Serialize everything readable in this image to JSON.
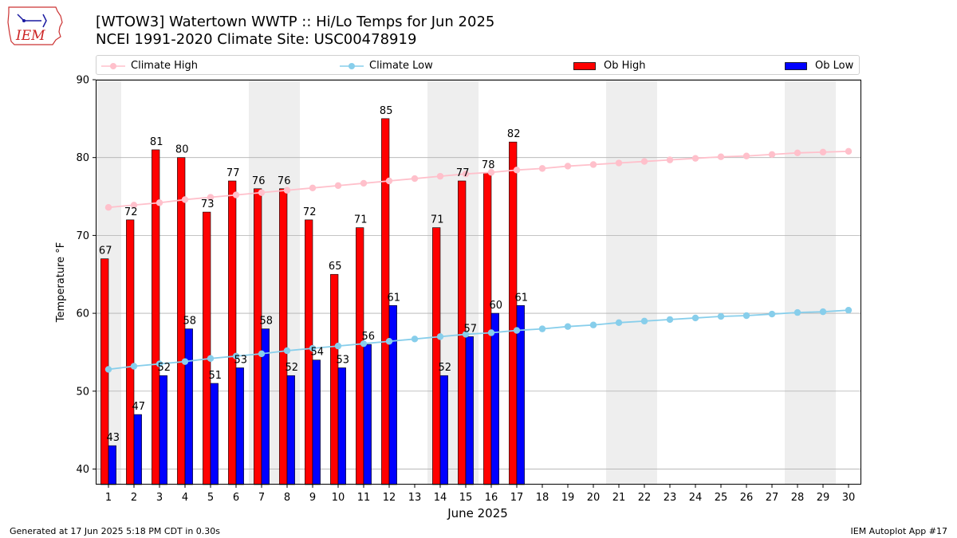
{
  "header": {
    "title_line1": "[WTOW3] Watertown WWTP :: Hi/Lo Temps for Jun 2025",
    "title_line2": "NCEI 1991-2020 Climate Site: USC00478919"
  },
  "logo": {
    "text": "IEM"
  },
  "footer": {
    "left": "Generated at 17 Jun 2025 5:18 PM CDT in 0.30s",
    "right": "IEM Autoplot App #17"
  },
  "colors": {
    "climate_high": "#ffc0cb",
    "climate_low": "#87ceeb",
    "ob_high": "#ff0000",
    "ob_low": "#0000ff",
    "weekend_shade": "#eeeeee",
    "grid": "#b0b0b0"
  },
  "chart_data": {
    "type": "bar",
    "xlabel": "June 2025",
    "ylabel": "Temperature °F",
    "ylim": [
      38,
      90
    ],
    "yticks": [
      40,
      50,
      60,
      70,
      80,
      90
    ],
    "grid": "horizontal",
    "legend": [
      "Climate High",
      "Climate Low",
      "Ob High",
      "Ob Low"
    ],
    "legend_placement": "top",
    "x": [
      1,
      2,
      3,
      4,
      5,
      6,
      7,
      8,
      9,
      10,
      11,
      12,
      13,
      14,
      15,
      16,
      17,
      18,
      19,
      20,
      21,
      22,
      23,
      24,
      25,
      26,
      27,
      28,
      29,
      30
    ],
    "shaded_days": [
      1,
      7,
      8,
      14,
      15,
      21,
      22,
      28,
      29
    ],
    "series": [
      {
        "name": "Ob High",
        "kind": "bar",
        "values": [
          67,
          72,
          81,
          80,
          73,
          77,
          76,
          76,
          72,
          65,
          71,
          85,
          null,
          71,
          77,
          78,
          82,
          null,
          null,
          null,
          null,
          null,
          null,
          null,
          null,
          null,
          null,
          null,
          null,
          null
        ]
      },
      {
        "name": "Ob Low",
        "kind": "bar",
        "values": [
          43,
          47,
          52,
          58,
          51,
          53,
          58,
          52,
          54,
          53,
          56,
          61,
          null,
          52,
          57,
          60,
          61,
          null,
          null,
          null,
          null,
          null,
          null,
          null,
          null,
          null,
          null,
          null,
          null,
          null
        ]
      },
      {
        "name": "Climate High",
        "kind": "line",
        "values": [
          73.6,
          73.9,
          74.2,
          74.6,
          74.9,
          75.2,
          75.5,
          75.8,
          76.1,
          76.4,
          76.7,
          77.0,
          77.3,
          77.6,
          77.9,
          78.1,
          78.4,
          78.6,
          78.9,
          79.1,
          79.3,
          79.5,
          79.7,
          79.9,
          80.1,
          80.2,
          80.4,
          80.6,
          80.7,
          80.8
        ]
      },
      {
        "name": "Climate Low",
        "kind": "line",
        "values": [
          52.8,
          53.2,
          53.5,
          53.8,
          54.2,
          54.5,
          54.8,
          55.2,
          55.5,
          55.8,
          56.1,
          56.4,
          56.7,
          57.0,
          57.3,
          57.5,
          57.8,
          58.0,
          58.3,
          58.5,
          58.8,
          59.0,
          59.2,
          59.4,
          59.6,
          59.7,
          59.9,
          60.1,
          60.2,
          60.4
        ]
      }
    ]
  }
}
